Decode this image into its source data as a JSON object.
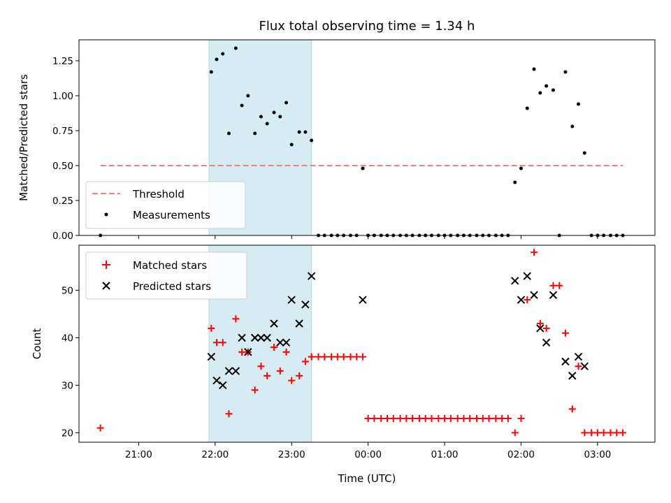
{
  "chart_data": [
    {
      "type": "scatter",
      "title": "Flux total observing time = 1.34 h",
      "xlabel": "",
      "ylabel": "Matched/Predicted stars",
      "ylim": [
        0,
        1.4
      ],
      "yticks": [
        "0.00",
        "0.25",
        "0.50",
        "0.75",
        "1.00",
        "1.25"
      ],
      "xlim": [
        20.22,
        27.75
      ],
      "shaded_interval": [
        21.92,
        23.26
      ],
      "threshold": {
        "name": "Threshold",
        "y": 0.5,
        "x_range": [
          20.5,
          27.33
        ],
        "color": "#f08080"
      },
      "legend": {
        "placement": "lower-left",
        "entries": [
          "Threshold",
          "Measurements"
        ]
      },
      "series": [
        {
          "name": "Measurements",
          "color": "#000000",
          "x": [
            20.5,
            21.95,
            22.02,
            22.1,
            22.18,
            22.27,
            22.35,
            22.43,
            22.52,
            22.6,
            22.68,
            22.77,
            22.85,
            22.93,
            23.0,
            23.1,
            23.18,
            23.26,
            23.35,
            23.43,
            23.52,
            23.6,
            23.68,
            23.77,
            23.85,
            23.93,
            23.93,
            24.0,
            24.08,
            24.17,
            24.25,
            24.33,
            24.42,
            24.5,
            24.58,
            24.67,
            24.75,
            24.83,
            24.92,
            25.0,
            25.08,
            25.17,
            25.25,
            25.33,
            25.42,
            25.5,
            25.58,
            25.67,
            25.75,
            25.83,
            25.92,
            26.0,
            26.08,
            26.17,
            26.25,
            26.33,
            26.42,
            26.5,
            26.58,
            26.67,
            26.75,
            26.83,
            26.92,
            27.0,
            27.08,
            27.17,
            27.25,
            27.33
          ],
          "y": [
            0.0,
            1.17,
            1.26,
            1.3,
            0.73,
            1.34,
            0.93,
            1.0,
            0.73,
            0.85,
            0.8,
            0.88,
            0.85,
            0.95,
            0.65,
            0.74,
            0.74,
            0.68,
            0.0,
            0.0,
            0.0,
            0.0,
            0.0,
            0.0,
            0.0,
            0.48,
            0.48,
            0.0,
            0.0,
            0.0,
            0.0,
            0.0,
            0.0,
            0.0,
            0.0,
            0.0,
            0.0,
            0.0,
            0.0,
            0.0,
            0.0,
            0.0,
            0.0,
            0.0,
            0.0,
            0.0,
            0.0,
            0.0,
            0.0,
            0.0,
            0.38,
            0.48,
            0.91,
            1.19,
            1.02,
            1.07,
            1.04,
            0.0,
            1.17,
            0.78,
            0.94,
            0.59,
            0.0,
            0.0,
            0.0,
            0.0,
            0.0,
            0.0
          ]
        }
      ]
    },
    {
      "type": "scatter",
      "title": "",
      "xlabel": "Time (UTC)",
      "ylabel": "Count",
      "ylim": [
        18,
        59.5
      ],
      "yticks": [
        "20",
        "30",
        "40",
        "50"
      ],
      "xlim": [
        20.22,
        27.75
      ],
      "xticks": [
        "21:00",
        "22:00",
        "23:00",
        "00:00",
        "01:00",
        "02:00",
        "03:00"
      ],
      "shaded_interval": [
        21.92,
        23.26
      ],
      "legend": {
        "placement": "upper-left",
        "entries": [
          "Matched stars",
          "Predicted stars"
        ]
      },
      "series": [
        {
          "name": "Matched stars",
          "marker": "plus",
          "color": "#ff0000",
          "x": [
            20.5,
            21.95,
            22.02,
            22.1,
            22.18,
            22.27,
            22.35,
            22.43,
            22.52,
            22.6,
            22.68,
            22.77,
            22.85,
            22.93,
            23.0,
            23.1,
            23.18,
            23.26,
            23.35,
            23.43,
            23.52,
            23.6,
            23.68,
            23.77,
            23.85,
            23.93,
            24.0,
            24.08,
            24.17,
            24.25,
            24.33,
            24.42,
            24.5,
            24.58,
            24.67,
            24.75,
            24.83,
            24.92,
            25.0,
            25.08,
            25.17,
            25.25,
            25.33,
            25.42,
            25.5,
            25.58,
            25.67,
            25.75,
            25.83,
            25.92,
            26.0,
            26.08,
            26.17,
            26.25,
            26.33,
            26.42,
            26.5,
            26.58,
            26.67,
            26.75,
            26.83,
            26.92,
            27.0,
            27.08,
            27.17,
            27.25,
            27.33
          ],
          "y": [
            21,
            42,
            39,
            39,
            24,
            44,
            37,
            37,
            29,
            34,
            32,
            38,
            33,
            37,
            31,
            32,
            35,
            36,
            36,
            36,
            36,
            36,
            36,
            36,
            36,
            36,
            23,
            23,
            23,
            23,
            23,
            23,
            23,
            23,
            23,
            23,
            23,
            23,
            23,
            23,
            23,
            23,
            23,
            23,
            23,
            23,
            23,
            23,
            23,
            20,
            23,
            48,
            58,
            43,
            42,
            51,
            51,
            41,
            25,
            34,
            20,
            20,
            20,
            20,
            20,
            20,
            20
          ]
        },
        {
          "name": "Predicted stars",
          "marker": "x",
          "color": "#000000",
          "x": [
            21.95,
            22.02,
            22.1,
            22.18,
            22.27,
            22.35,
            22.43,
            22.52,
            22.6,
            22.68,
            22.77,
            22.85,
            22.93,
            23.0,
            23.1,
            23.18,
            23.26,
            23.93,
            25.92,
            26.0,
            26.08,
            26.17,
            26.25,
            26.33,
            26.42,
            26.58,
            26.67,
            26.75,
            26.83
          ],
          "y": [
            36,
            31,
            30,
            33,
            33,
            40,
            37,
            40,
            40,
            40,
            43,
            39,
            39,
            48,
            43,
            47,
            53,
            48,
            52,
            48,
            53,
            49,
            42,
            39,
            49,
            35,
            32,
            36,
            34
          ]
        }
      ]
    }
  ]
}
